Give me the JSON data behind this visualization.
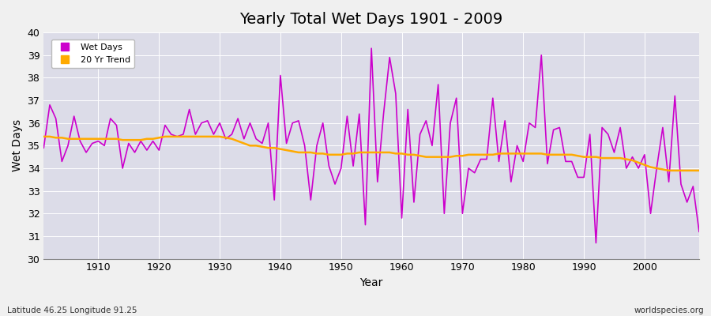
{
  "title": "Yearly Total Wet Days 1901 - 2009",
  "ylabel": "Wet Days",
  "xlabel": "Year",
  "footnote_left": "Latitude 46.25 Longitude 91.25",
  "footnote_right": "worldspecies.org",
  "ylim": [
    30,
    40
  ],
  "yticks": [
    30,
    31,
    32,
    33,
    34,
    35,
    36,
    37,
    38,
    39,
    40
  ],
  "line_color": "#cc00cc",
  "trend_color": "#ffaa00",
  "plot_bg_color": "#dcdce8",
  "fig_bg_color": "#f0f0f0",
  "wet_days": {
    "1901": 34.9,
    "1902": 36.8,
    "1903": 36.2,
    "1904": 34.3,
    "1905": 35.0,
    "1906": 36.3,
    "1907": 35.2,
    "1908": 34.7,
    "1909": 35.1,
    "1910": 35.2,
    "1911": 35.0,
    "1912": 36.2,
    "1913": 35.9,
    "1914": 34.0,
    "1915": 35.1,
    "1916": 34.7,
    "1917": 35.2,
    "1918": 34.8,
    "1919": 35.2,
    "1920": 34.8,
    "1921": 35.9,
    "1922": 35.5,
    "1923": 35.4,
    "1924": 35.5,
    "1925": 36.6,
    "1926": 35.5,
    "1927": 36.0,
    "1928": 36.1,
    "1929": 35.5,
    "1930": 36.0,
    "1931": 35.3,
    "1932": 35.5,
    "1933": 36.2,
    "1934": 35.3,
    "1935": 36.0,
    "1936": 35.3,
    "1937": 35.1,
    "1938": 36.0,
    "1939": 32.6,
    "1940": 38.1,
    "1941": 35.1,
    "1942": 36.0,
    "1943": 36.1,
    "1944": 35.0,
    "1945": 32.6,
    "1946": 35.0,
    "1947": 36.0,
    "1948": 34.1,
    "1949": 33.3,
    "1950": 34.0,
    "1951": 36.3,
    "1952": 34.1,
    "1953": 36.4,
    "1954": 31.5,
    "1955": 39.3,
    "1956": 33.4,
    "1957": 36.4,
    "1958": 38.9,
    "1959": 37.3,
    "1960": 31.8,
    "1961": 36.6,
    "1962": 32.5,
    "1963": 35.5,
    "1964": 36.1,
    "1965": 35.0,
    "1966": 37.7,
    "1967": 32.0,
    "1968": 36.0,
    "1969": 37.1,
    "1970": 32.0,
    "1971": 34.0,
    "1972": 33.8,
    "1973": 34.4,
    "1974": 34.4,
    "1975": 37.1,
    "1976": 34.3,
    "1977": 36.1,
    "1978": 33.4,
    "1979": 35.0,
    "1980": 34.3,
    "1981": 36.0,
    "1982": 35.8,
    "1983": 39.0,
    "1984": 34.2,
    "1985": 35.7,
    "1986": 35.8,
    "1987": 34.3,
    "1988": 34.3,
    "1989": 33.6,
    "1990": 33.6,
    "1991": 35.5,
    "1992": 30.7,
    "1993": 35.8,
    "1994": 35.5,
    "1995": 34.7,
    "1996": 35.8,
    "1997": 34.0,
    "1998": 34.5,
    "1999": 34.0,
    "2000": 34.6,
    "2001": 32.0,
    "2002": 34.0,
    "2003": 35.8,
    "2004": 33.4,
    "2005": 37.2,
    "2006": 33.3,
    "2007": 32.5,
    "2008": 33.2,
    "2009": 31.2
  },
  "trend_days": {
    "1901": 35.4,
    "1902": 35.4,
    "1903": 35.35,
    "1904": 35.35,
    "1905": 35.3,
    "1906": 35.3,
    "1907": 35.3,
    "1908": 35.3,
    "1909": 35.3,
    "1910": 35.3,
    "1911": 35.3,
    "1912": 35.3,
    "1913": 35.3,
    "1914": 35.25,
    "1915": 35.25,
    "1916": 35.25,
    "1917": 35.25,
    "1918": 35.3,
    "1919": 35.3,
    "1920": 35.35,
    "1921": 35.4,
    "1922": 35.4,
    "1923": 35.4,
    "1924": 35.4,
    "1925": 35.4,
    "1926": 35.4,
    "1927": 35.4,
    "1928": 35.4,
    "1929": 35.4,
    "1930": 35.4,
    "1931": 35.35,
    "1932": 35.3,
    "1933": 35.2,
    "1934": 35.1,
    "1935": 35.0,
    "1936": 35.0,
    "1937": 34.95,
    "1938": 34.9,
    "1939": 34.9,
    "1940": 34.85,
    "1941": 34.8,
    "1942": 34.75,
    "1943": 34.7,
    "1944": 34.7,
    "1945": 34.7,
    "1946": 34.65,
    "1947": 34.65,
    "1948": 34.6,
    "1949": 34.6,
    "1950": 34.6,
    "1951": 34.65,
    "1952": 34.65,
    "1953": 34.7,
    "1954": 34.7,
    "1955": 34.7,
    "1956": 34.7,
    "1957": 34.7,
    "1958": 34.7,
    "1959": 34.65,
    "1960": 34.65,
    "1961": 34.6,
    "1962": 34.6,
    "1963": 34.55,
    "1964": 34.5,
    "1965": 34.5,
    "1966": 34.5,
    "1967": 34.5,
    "1968": 34.5,
    "1969": 34.55,
    "1970": 34.55,
    "1971": 34.6,
    "1972": 34.6,
    "1973": 34.6,
    "1974": 34.6,
    "1975": 34.6,
    "1976": 34.65,
    "1977": 34.65,
    "1978": 34.65,
    "1979": 34.65,
    "1980": 34.65,
    "1981": 34.65,
    "1982": 34.65,
    "1983": 34.65,
    "1984": 34.6,
    "1985": 34.6,
    "1986": 34.6,
    "1987": 34.6,
    "1988": 34.6,
    "1989": 34.55,
    "1990": 34.5,
    "1991": 34.5,
    "1992": 34.5,
    "1993": 34.45,
    "1994": 34.45,
    "1995": 34.45,
    "1996": 34.45,
    "1997": 34.4,
    "1998": 34.35,
    "1999": 34.25,
    "2000": 34.15,
    "2001": 34.05,
    "2002": 34.0,
    "2003": 33.95,
    "2004": 33.9,
    "2005": 33.9,
    "2006": 33.9,
    "2007": 33.9,
    "2008": 33.9,
    "2009": 33.9
  }
}
